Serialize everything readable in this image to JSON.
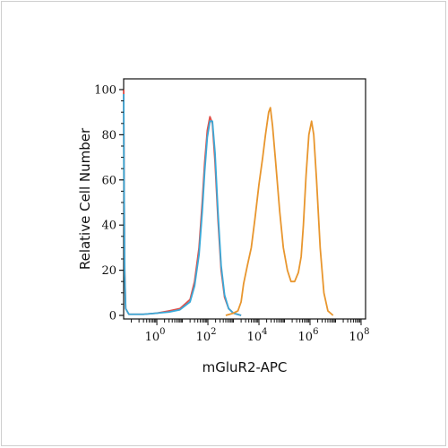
{
  "chart_data": {
    "type": "line",
    "xlabel": "mGluR2-APC",
    "ylabel": "Relative Cell Number",
    "xscale": "log",
    "xlim": [
      0.05,
      150000000
    ],
    "ylim": [
      0,
      100
    ],
    "grid": false,
    "legend": "none",
    "y_ticks": [
      {
        "value": 0,
        "label": "0"
      },
      {
        "value": 20,
        "label": "20"
      },
      {
        "value": 40,
        "label": "40"
      },
      {
        "value": 60,
        "label": "60"
      },
      {
        "value": 80,
        "label": "80"
      },
      {
        "value": 100,
        "label": "100"
      }
    ],
    "x_ticks": [
      {
        "value": 1,
        "base": "10",
        "exp": "0"
      },
      {
        "value": 100,
        "base": "10",
        "exp": "2"
      },
      {
        "value": 10000,
        "base": "10",
        "exp": "4"
      },
      {
        "value": 1000000,
        "base": "10",
        "exp": "6"
      },
      {
        "value": 100000000,
        "base": "10",
        "exp": "8"
      }
    ],
    "series": [
      {
        "color": "#e0504a",
        "points": [
          [
            0.05,
            100
          ],
          [
            0.052,
            60
          ],
          [
            0.055,
            20
          ],
          [
            0.06,
            3
          ],
          [
            0.08,
            0.5
          ],
          [
            0.3,
            0.5
          ],
          [
            1,
            1
          ],
          [
            3,
            2
          ],
          [
            8,
            3
          ],
          [
            20,
            7
          ],
          [
            30,
            15
          ],
          [
            45,
            30
          ],
          [
            60,
            50
          ],
          [
            75,
            68
          ],
          [
            95,
            82
          ],
          [
            120,
            88
          ],
          [
            150,
            85
          ],
          [
            190,
            68
          ],
          [
            250,
            42
          ],
          [
            330,
            20
          ],
          [
            450,
            8
          ],
          [
            650,
            3
          ],
          [
            1000,
            1
          ],
          [
            2000,
            0
          ]
        ]
      },
      {
        "color": "#3aa9d8",
        "points": [
          [
            0.05,
            98
          ],
          [
            0.052,
            55
          ],
          [
            0.055,
            18
          ],
          [
            0.06,
            3
          ],
          [
            0.08,
            0.5
          ],
          [
            0.3,
            0.5
          ],
          [
            1,
            1
          ],
          [
            3,
            1.5
          ],
          [
            8,
            2.5
          ],
          [
            20,
            6
          ],
          [
            30,
            13
          ],
          [
            45,
            27
          ],
          [
            60,
            46
          ],
          [
            75,
            64
          ],
          [
            95,
            79
          ],
          [
            120,
            86
          ],
          [
            150,
            86
          ],
          [
            190,
            72
          ],
          [
            250,
            45
          ],
          [
            330,
            22
          ],
          [
            450,
            9
          ],
          [
            650,
            3
          ],
          [
            1000,
            1
          ],
          [
            2000,
            0
          ]
        ]
      },
      {
        "color": "#e8962e",
        "points": [
          [
            500,
            0
          ],
          [
            1000,
            1
          ],
          [
            1500,
            2
          ],
          [
            2000,
            6
          ],
          [
            2500,
            14
          ],
          [
            3500,
            22
          ],
          [
            5000,
            30
          ],
          [
            7000,
            43
          ],
          [
            10000,
            58
          ],
          [
            14000,
            70
          ],
          [
            18000,
            80
          ],
          [
            24000,
            90
          ],
          [
            28000,
            92
          ],
          [
            34000,
            84
          ],
          [
            45000,
            68
          ],
          [
            65000,
            46
          ],
          [
            90000,
            30
          ],
          [
            130000,
            20
          ],
          [
            180000,
            15
          ],
          [
            250000,
            15
          ],
          [
            350000,
            19
          ],
          [
            450000,
            26
          ],
          [
            550000,
            40
          ],
          [
            700000,
            62
          ],
          [
            900000,
            80
          ],
          [
            1150000,
            86
          ],
          [
            1400000,
            80
          ],
          [
            1800000,
            60
          ],
          [
            2500000,
            30
          ],
          [
            3500000,
            10
          ],
          [
            5000000,
            2
          ],
          [
            8000000,
            0
          ]
        ]
      }
    ]
  }
}
